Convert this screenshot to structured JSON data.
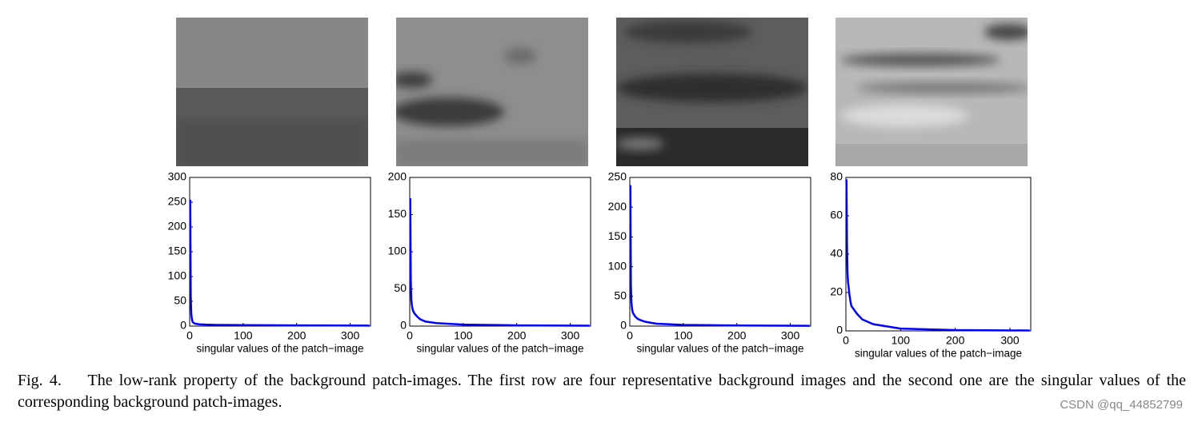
{
  "chart_data": [
    {
      "type": "line",
      "xlabel": "singular values of the patch−image",
      "x": [
        1,
        2,
        3,
        4,
        5,
        6,
        8,
        10,
        15,
        20,
        30,
        50,
        100,
        200,
        336
      ],
      "values": [
        255,
        60,
        25,
        15,
        10,
        8,
        6,
        5,
        4,
        3.5,
        3,
        2.5,
        2,
        1.5,
        1
      ],
      "color": "#0000ff",
      "xlim": [
        0,
        338
      ],
      "ylim": [
        0,
        300
      ],
      "xticks": [
        0,
        100,
        200,
        300
      ],
      "yticks": [
        0,
        50,
        100,
        150,
        200,
        250,
        300
      ]
    },
    {
      "type": "line",
      "xlabel": "singular values of the patch−image",
      "x": [
        1,
        2,
        3,
        4,
        5,
        6,
        8,
        10,
        15,
        20,
        30,
        50,
        100,
        200,
        336
      ],
      "values": [
        172,
        60,
        35,
        28,
        24,
        21,
        18,
        16,
        12,
        9,
        6,
        4,
        2,
        1,
        0.5
      ],
      "color": "#0000ff",
      "xlim": [
        0,
        338
      ],
      "ylim": [
        0,
        200
      ],
      "xticks": [
        0,
        100,
        200,
        300
      ],
      "yticks": [
        0,
        50,
        100,
        150,
        200
      ]
    },
    {
      "type": "line",
      "xlabel": "singular values of the patch−image",
      "x": [
        1,
        2,
        3,
        4,
        5,
        6,
        8,
        10,
        15,
        20,
        30,
        50,
        100,
        200,
        336
      ],
      "values": [
        237,
        70,
        40,
        30,
        25,
        22,
        19,
        16,
        12,
        10,
        7,
        4,
        2,
        1,
        0.5
      ],
      "color": "#0000ff",
      "xlim": [
        0,
        338
      ],
      "ylim": [
        0,
        250
      ],
      "xticks": [
        0,
        100,
        200,
        300
      ],
      "yticks": [
        0,
        50,
        100,
        150,
        200,
        250
      ]
    },
    {
      "type": "line",
      "xlabel": "singular values of the patch−image",
      "x": [
        1,
        2,
        3,
        4,
        5,
        6,
        8,
        10,
        15,
        20,
        30,
        50,
        100,
        200,
        336
      ],
      "values": [
        79,
        45,
        30,
        25,
        23,
        20,
        16,
        13,
        11,
        9,
        6,
        3.5,
        1.2,
        0.4,
        0.2
      ],
      "color": "#0000ff",
      "xlim": [
        0,
        338
      ],
      "ylim": [
        0,
        80
      ],
      "xticks": [
        0,
        100,
        200,
        300
      ],
      "yticks": [
        0,
        20,
        40,
        60,
        80
      ]
    }
  ],
  "caption": {
    "label": "Fig. 4.",
    "text": "The low-rank property of the background patch-images. The first row are four representative background images and the second one are the singular values of the corresponding background patch-images."
  },
  "watermark": "CSDN @qq_44852799"
}
